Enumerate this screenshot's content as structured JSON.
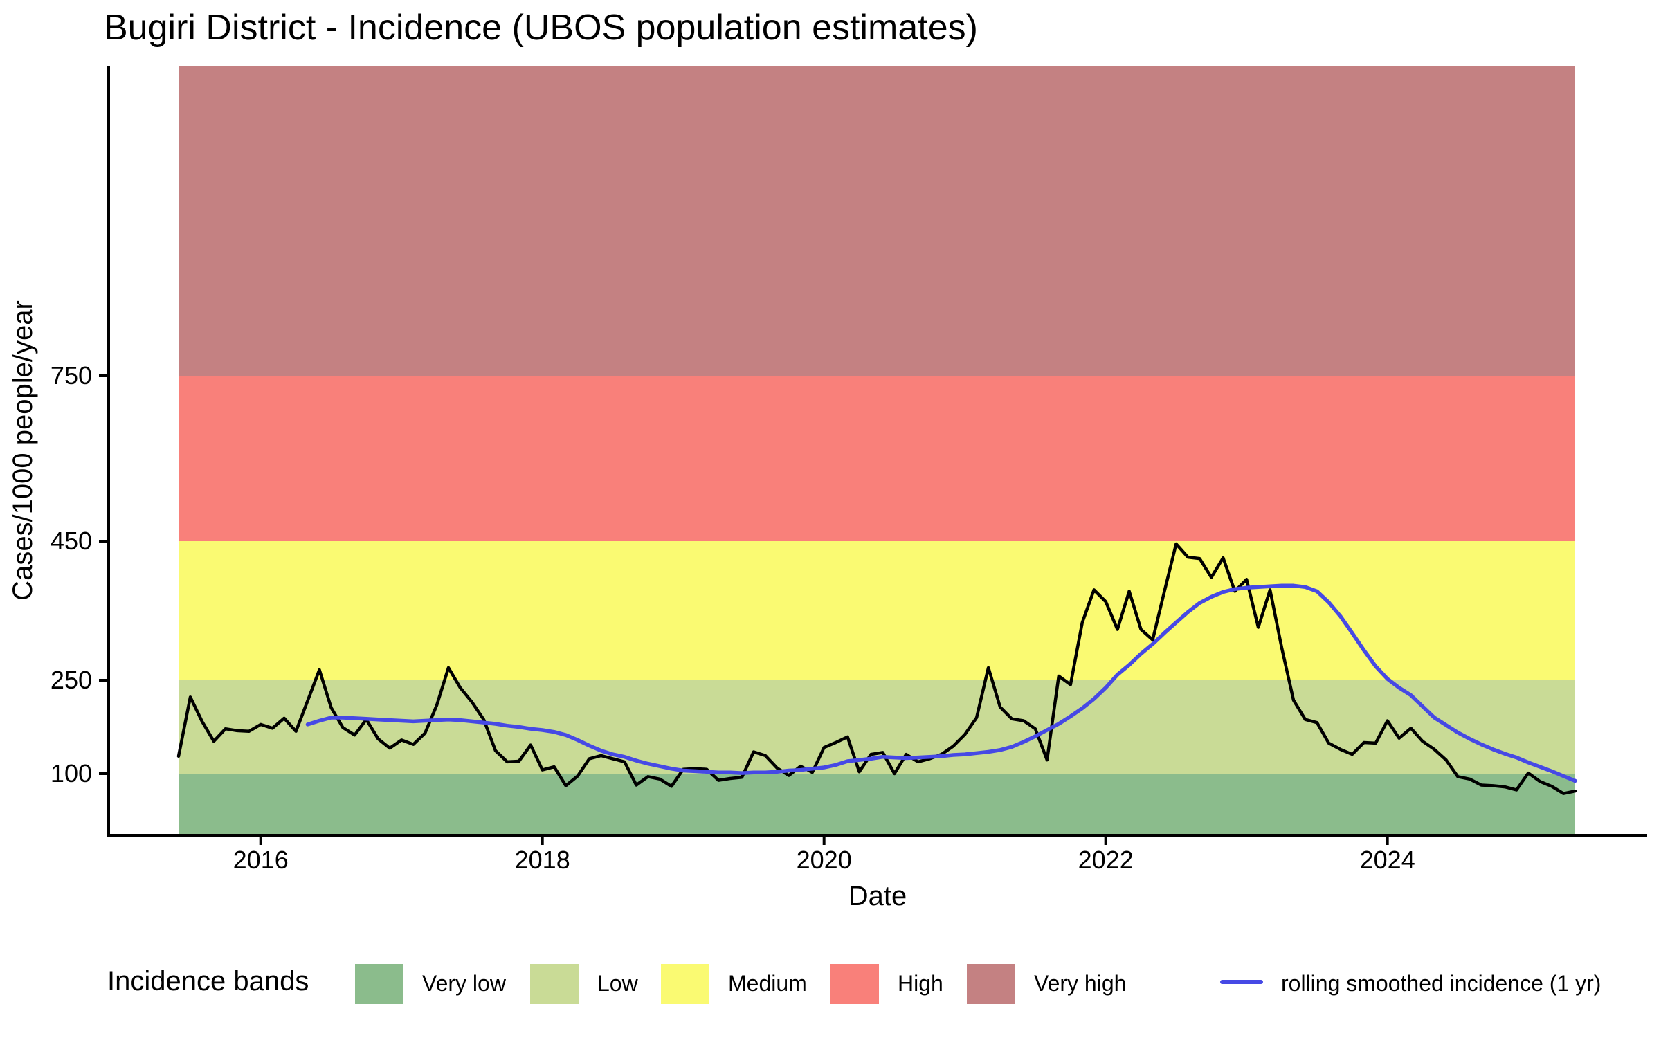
{
  "title": "Bugiri District - Incidence (UBOS population estimates)",
  "axes": {
    "x_label": "Date",
    "y_label": "Cases/1000 people/year",
    "x_ticks": [
      2016,
      2018,
      2020,
      2022,
      2024
    ],
    "y_ticks": [
      100,
      250,
      450,
      750
    ]
  },
  "legend": {
    "title": "Incidence bands",
    "items": [
      {
        "label": "Very low",
        "color": "#8BBC8C"
      },
      {
        "label": "Low",
        "color": "#C9DB96"
      },
      {
        "label": "Medium",
        "color": "#FAFA72"
      },
      {
        "label": "High",
        "color": "#F9807A"
      },
      {
        "label": "Very high",
        "color": "#C48182"
      }
    ],
    "line_item": {
      "label": "rolling smoothed incidence (1 yr)",
      "color": "#4649E5"
    }
  },
  "chart_data": {
    "type": "line",
    "title": "Bugiri District - Incidence (UBOS population estimates)",
    "xlabel": "Date",
    "ylabel": "Cases/1000 people/year",
    "x_tick_years": [
      2016,
      2018,
      2020,
      2022,
      2024
    ],
    "y_tick_values": [
      100,
      250,
      450,
      750
    ],
    "y_top_value": 1315,
    "grid": false,
    "legend_position": "bottom",
    "bands": [
      {
        "label": "Very low",
        "lo": 0,
        "hi": 100,
        "color": "#8BBC8C"
      },
      {
        "label": "Low",
        "lo": 100,
        "hi": 250,
        "color": "#C9DB96"
      },
      {
        "label": "Medium",
        "lo": 250,
        "hi": 450,
        "color": "#FAFA72"
      },
      {
        "label": "High",
        "lo": 450,
        "hi": 750,
        "color": "#F9807A"
      },
      {
        "label": "Very high",
        "lo": 750,
        "hi": null,
        "color": "#C48182"
      }
    ],
    "months": [
      "2015-06",
      "2015-07",
      "2015-08",
      "2015-09",
      "2015-10",
      "2015-11",
      "2015-12",
      "2016-01",
      "2016-02",
      "2016-03",
      "2016-04",
      "2016-05",
      "2016-06",
      "2016-07",
      "2016-08",
      "2016-09",
      "2016-10",
      "2016-11",
      "2016-12",
      "2017-01",
      "2017-02",
      "2017-03",
      "2017-04",
      "2017-05",
      "2017-06",
      "2017-07",
      "2017-08",
      "2017-09",
      "2017-10",
      "2017-11",
      "2017-12",
      "2018-01",
      "2018-02",
      "2018-03",
      "2018-04",
      "2018-05",
      "2018-06",
      "2018-07",
      "2018-08",
      "2018-09",
      "2018-10",
      "2018-11",
      "2018-12",
      "2019-01",
      "2019-02",
      "2019-03",
      "2019-04",
      "2019-05",
      "2019-06",
      "2019-07",
      "2019-08",
      "2019-09",
      "2019-10",
      "2019-11",
      "2019-12",
      "2020-01",
      "2020-02",
      "2020-03",
      "2020-04",
      "2020-05",
      "2020-06",
      "2020-07",
      "2020-08",
      "2020-09",
      "2020-10",
      "2020-11",
      "2020-12",
      "2021-01",
      "2021-02",
      "2021-03",
      "2021-04",
      "2021-05",
      "2021-06",
      "2021-07",
      "2021-08",
      "2021-09",
      "2021-10",
      "2021-11",
      "2021-12",
      "2022-01",
      "2022-02",
      "2022-03",
      "2022-04",
      "2022-05",
      "2022-06",
      "2022-07",
      "2022-08",
      "2022-09",
      "2022-10",
      "2022-11",
      "2022-12",
      "2023-01",
      "2023-02",
      "2023-03",
      "2023-04",
      "2023-05",
      "2023-06",
      "2023-07",
      "2023-08",
      "2023-09",
      "2023-10",
      "2023-11",
      "2023-12",
      "2024-01",
      "2024-02",
      "2024-03",
      "2024-04",
      "2024-05",
      "2024-06",
      "2024-07",
      "2024-08",
      "2024-09",
      "2024-10",
      "2024-11",
      "2024-12",
      "2025-01",
      "2025-02",
      "2025-03",
      "2025-04",
      "2025-05"
    ],
    "series": [
      {
        "name": "monthly incidence",
        "color": "#000000",
        "values": [
          128,
          223,
          184,
          152,
          172,
          169,
          168,
          179,
          173,
          189,
          168,
          217,
          265,
          206,
          174,
          162,
          187,
          156,
          141,
          154,
          147,
          165,
          210,
          268,
          238,
          215,
          187,
          137,
          119,
          120,
          146,
          106,
          111,
          80,
          96,
          124,
          129,
          124,
          119,
          81,
          95,
          91,
          79,
          107,
          108,
          107,
          89,
          92,
          94,
          135,
          129,
          109,
          97,
          112,
          102,
          142,
          150,
          159,
          103,
          131,
          134,
          100,
          131,
          119,
          124,
          131,
          144,
          163,
          190,
          268,
          207,
          188,
          185,
          172,
          122,
          256,
          243,
          333,
          380,
          363,
          323,
          378,
          323,
          308,
          378,
          446,
          427,
          425,
          398,
          426,
          378,
          395,
          326,
          380,
          296,
          218,
          187,
          182,
          149,
          139,
          131,
          150,
          149,
          185,
          157,
          173,
          152,
          139,
          122,
          95,
          91,
          81,
          80,
          78,
          73,
          101,
          87,
          79,
          67,
          71
        ]
      },
      {
        "name": "rolling smoothed incidence (1 yr)",
        "color": "#4649E5",
        "values": [
          null,
          null,
          null,
          null,
          null,
          null,
          null,
          null,
          null,
          null,
          null,
          179,
          185,
          190,
          190,
          189,
          188,
          187,
          186,
          185,
          184,
          185,
          186,
          187,
          186,
          184,
          182,
          180,
          177,
          175,
          172,
          170,
          167,
          162,
          154,
          145,
          137,
          131,
          127,
          121,
          116,
          112,
          108,
          105,
          104,
          103,
          102,
          102,
          101,
          102,
          102,
          103,
          105,
          106,
          108,
          110,
          114,
          120,
          122,
          124,
          127,
          126,
          125,
          126,
          127,
          128,
          130,
          131,
          133,
          135,
          138,
          143,
          151,
          160,
          170,
          180,
          192,
          205,
          220,
          238,
          258,
          272,
          288,
          302,
          318,
          333,
          348,
          361,
          370,
          377,
          381,
          383,
          384,
          385,
          386,
          386,
          384,
          378,
          362,
          342,
          318,
          293,
          270,
          252,
          238,
          226,
          208,
          190,
          178,
          166,
          156,
          147,
          139,
          132,
          126,
          118,
          111,
          104,
          96,
          88
        ]
      }
    ]
  }
}
